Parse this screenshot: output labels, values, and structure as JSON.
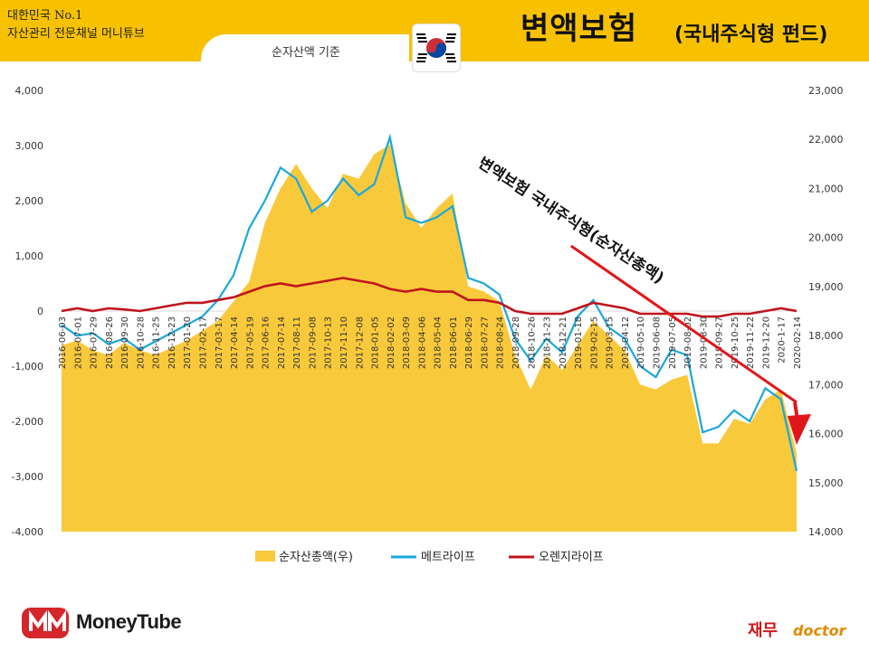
{
  "header": {
    "brand_line1": "대한민국 No.1",
    "brand_line2": "자산관리 전문채널 머니튜브",
    "title_main": "변액보험",
    "title_sub": "(국내주식형 펀드)",
    "subtitle": "순자산액 기준",
    "flag_icon": "korea-flag-icon"
  },
  "footer": {
    "logo_text": "MoneyTube",
    "right_text1": "재무",
    "right_text2": "doctor"
  },
  "colors": {
    "header_bg": "#f7c100",
    "area": "#f9c93c",
    "metlife": "#1aa7dc",
    "orange": "#c0141c",
    "arrow": "#e0171a"
  },
  "chart_data": {
    "type": "area",
    "annotation": "변액보험 국내주식형(순자산총액)",
    "left_axis": {
      "ticks": [
        "4,000",
        "3,000",
        "2,000",
        "1,000",
        "0",
        "-1,000",
        "-2,000",
        "-3,000",
        "-4,000"
      ],
      "ylim": [
        -4000,
        4000
      ]
    },
    "right_axis": {
      "ticks": [
        "23,000",
        "22,000",
        "21,000",
        "20,000",
        "19,000",
        "18,000",
        "17,000",
        "16,000",
        "15,000",
        "14,000"
      ],
      "ylim": [
        14000,
        23000
      ]
    },
    "x_labels": [
      "2016-06-03",
      "2016-07-01",
      "2016-07-29",
      "2016-08-26",
      "2016-09-30",
      "2016-10-28",
      "2016-11-25",
      "2016-12-23",
      "2017-01-20",
      "2017-02-17",
      "2017-03-17",
      "2017-04-14",
      "2017-05-19",
      "2017-06-16",
      "2017-07-14",
      "2017-08-11",
      "2017-09-08",
      "2017-10-13",
      "2017-11-10",
      "2017-12-08",
      "2018-01-05",
      "2018-02-02",
      "2018-03-09",
      "2018-04-06",
      "2018-05-04",
      "2018-06-01",
      "2018-06-29",
      "2018-07-27",
      "2018-08-24",
      "2018-09-28",
      "2018-10-26",
      "2018-11-23",
      "2018-12-21",
      "2019-01-18",
      "2019-02-15",
      "2019-03-15",
      "2019-04-12",
      "2019-05-10",
      "2019-06-08",
      "2019-07-05",
      "2019-08-02",
      "2019-08-30",
      "2019-09-27",
      "2019-10-25",
      "2019-11-22",
      "2019-12-20",
      "2020-1-17",
      "2020-02-14"
    ],
    "series": [
      {
        "name": "순자산총액(우)",
        "axis": "right",
        "values": [
          17800,
          17900,
          17700,
          17600,
          17850,
          17700,
          17600,
          17750,
          17900,
          18100,
          18300,
          18700,
          19100,
          20300,
          21000,
          21500,
          21000,
          20600,
          21300,
          21200,
          21700,
          21900,
          20700,
          20200,
          20600,
          20900,
          19000,
          18900,
          18700,
          17600,
          16900,
          17600,
          17300,
          17800,
          18300,
          18000,
          17700,
          17000,
          16900,
          17100,
          17200,
          15800,
          15800,
          16300,
          16200,
          16700,
          16900,
          15600
        ]
      },
      {
        "name": "메트라이프",
        "axis": "left",
        "values": [
          -250,
          -450,
          -400,
          -600,
          -500,
          -700,
          -550,
          -400,
          -250,
          -100,
          200,
          650,
          1500,
          2000,
          2600,
          2400,
          1800,
          2000,
          2400,
          2100,
          2300,
          3150,
          1700,
          1600,
          1700,
          1900,
          600,
          500,
          300,
          -500,
          -900,
          -500,
          -750,
          -100,
          200,
          -300,
          -500,
          -1000,
          -1200,
          -700,
          -800,
          -2200,
          -2100,
          -1800,
          -2000,
          -1400,
          -1600,
          -2900
        ]
      },
      {
        "name": "오렌지라이프",
        "axis": "left",
        "values": [
          0,
          50,
          0,
          50,
          30,
          0,
          50,
          100,
          150,
          150,
          200,
          250,
          350,
          450,
          500,
          450,
          500,
          550,
          600,
          550,
          500,
          400,
          350,
          400,
          350,
          350,
          200,
          200,
          150,
          0,
          -50,
          -50,
          -50,
          50,
          150,
          100,
          50,
          -50,
          -50,
          -50,
          -50,
          -100,
          -100,
          -50,
          -50,
          0,
          50,
          0
        ]
      }
    ],
    "trend_arrow": {
      "from": "2018-12-21",
      "to": "2020-02-14"
    },
    "legend": "bottom"
  }
}
